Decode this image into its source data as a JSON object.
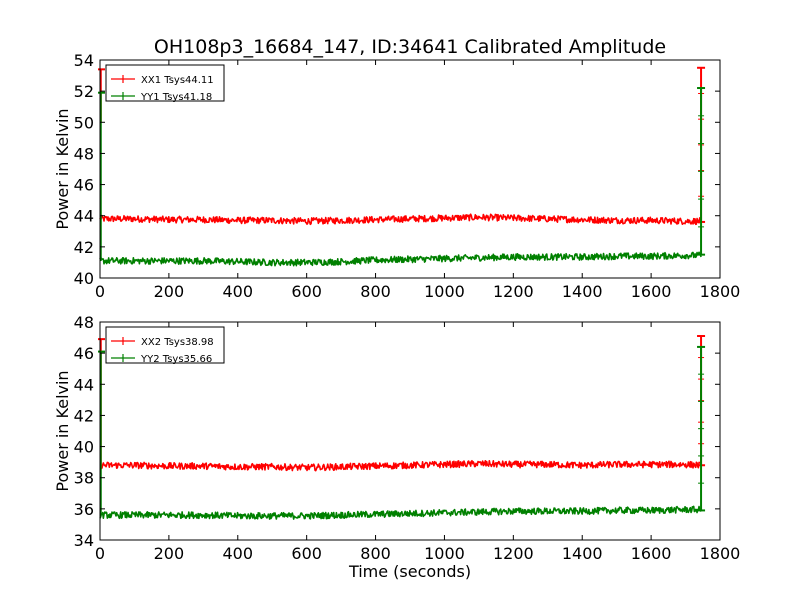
{
  "figure": {
    "title": "OH108p3_16684_147, ID:34641 Calibrated Amplitude"
  },
  "chart_data": [
    {
      "type": "line",
      "title": "OH108p3_16684_147, ID:34641 Calibrated Amplitude",
      "xlabel": "",
      "ylabel": "Power in Kelvin",
      "xlim": [
        0,
        1800
      ],
      "ylim": [
        40,
        54
      ],
      "xticks": [
        "0",
        "200",
        "400",
        "600",
        "800",
        "1000",
        "1200",
        "1400",
        "1600",
        "1800"
      ],
      "yticks": [
        "40",
        "42",
        "44",
        "46",
        "48",
        "50",
        "52",
        "54"
      ],
      "legend_position": "top-left",
      "series": [
        {
          "name": "XX1 Tsys44.11",
          "color": "#ff0000",
          "x": [
            0,
            100,
            200,
            300,
            400,
            500,
            600,
            700,
            800,
            900,
            1000,
            1100,
            1200,
            1300,
            1400,
            1500,
            1600,
            1700,
            1745
          ],
          "y": [
            43.8,
            43.8,
            43.75,
            43.75,
            43.7,
            43.7,
            43.65,
            43.7,
            43.75,
            43.8,
            43.85,
            43.9,
            43.85,
            43.8,
            43.75,
            43.7,
            43.7,
            43.65,
            43.65
          ],
          "start_spike": [
            50.0,
            53.4
          ],
          "end_spike": [
            43.6,
            53.5
          ]
        },
        {
          "name": "YY1 Tsys41.18",
          "color": "#008000",
          "x": [
            0,
            100,
            200,
            300,
            400,
            500,
            600,
            700,
            800,
            900,
            1000,
            1100,
            1200,
            1300,
            1400,
            1500,
            1600,
            1700,
            1745
          ],
          "y": [
            41.1,
            41.1,
            41.1,
            41.1,
            41.05,
            41.0,
            41.0,
            41.05,
            41.15,
            41.2,
            41.25,
            41.3,
            41.35,
            41.35,
            41.35,
            41.4,
            41.4,
            41.45,
            41.45
          ],
          "start_spike": [
            41.1,
            51.9
          ],
          "end_spike": [
            41.5,
            52.2
          ]
        }
      ]
    },
    {
      "type": "line",
      "title": "",
      "xlabel": "Time (seconds)",
      "ylabel": "Power in Kelvin",
      "xlim": [
        0,
        1800
      ],
      "ylim": [
        34,
        48
      ],
      "xticks": [
        "0",
        "200",
        "400",
        "600",
        "800",
        "1000",
        "1200",
        "1400",
        "1600",
        "1800"
      ],
      "yticks": [
        "34",
        "36",
        "38",
        "40",
        "42",
        "44",
        "46",
        "48"
      ],
      "legend_position": "top-left",
      "series": [
        {
          "name": "XX2 Tsys38.98",
          "color": "#ff0000",
          "x": [
            0,
            100,
            200,
            300,
            400,
            500,
            600,
            700,
            800,
            900,
            1000,
            1100,
            1200,
            1300,
            1400,
            1500,
            1600,
            1700,
            1745
          ],
          "y": [
            38.8,
            38.8,
            38.75,
            38.75,
            38.7,
            38.7,
            38.65,
            38.7,
            38.75,
            38.8,
            38.85,
            38.9,
            38.85,
            38.85,
            38.8,
            38.85,
            38.85,
            38.85,
            38.8
          ],
          "start_spike": [
            38.8,
            46.9
          ],
          "end_spike": [
            38.8,
            47.1
          ]
        },
        {
          "name": "YY2 Tsys35.66",
          "color": "#008000",
          "x": [
            0,
            100,
            200,
            300,
            400,
            500,
            600,
            700,
            800,
            900,
            1000,
            1100,
            1200,
            1300,
            1400,
            1500,
            1600,
            1700,
            1745
          ],
          "y": [
            35.6,
            35.6,
            35.6,
            35.6,
            35.55,
            35.55,
            35.55,
            35.6,
            35.65,
            35.7,
            35.75,
            35.8,
            35.85,
            35.85,
            35.85,
            35.9,
            35.9,
            35.95,
            35.95
          ],
          "start_spike": [
            35.6,
            46.1
          ],
          "end_spike": [
            35.9,
            46.4
          ]
        }
      ]
    }
  ]
}
